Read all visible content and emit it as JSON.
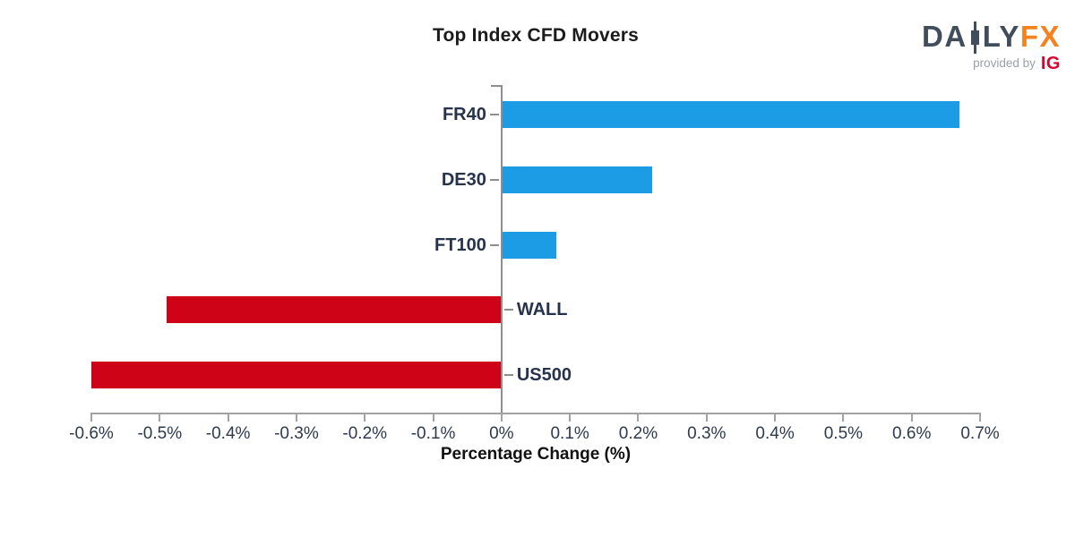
{
  "logo": {
    "part1": "DA",
    "part2": "LY",
    "part3": "FX",
    "provided_by": "provided by",
    "ig": "IG",
    "colors": {
      "wordmark": "#424d5c",
      "fx": "#f5821f",
      "provided_by": "#9aa0a8",
      "ig": "#d9032d"
    }
  },
  "chart_data": {
    "type": "bar",
    "orientation": "horizontal",
    "title": "Top Index CFD Movers",
    "xlabel": "Percentage Change (%)",
    "categories": [
      "FR40",
      "DE30",
      "FT100",
      "WALL",
      "US500"
    ],
    "values": [
      0.67,
      0.22,
      0.08,
      -0.49,
      -0.6
    ],
    "unit": "%",
    "xlim": [
      -0.6,
      0.7
    ],
    "x_ticks": [
      -0.6,
      -0.5,
      -0.4,
      -0.3,
      -0.2,
      -0.1,
      0,
      0.1,
      0.2,
      0.3,
      0.4,
      0.5,
      0.6,
      0.7
    ],
    "x_tick_labels": [
      "-0.6%",
      "-0.5%",
      "-0.4%",
      "-0.3%",
      "-0.2%",
      "-0.1%",
      "0%",
      "0.1%",
      "0.2%",
      "0.3%",
      "0.4%",
      "0.5%",
      "0.6%",
      "0.7%"
    ],
    "positive_color": "#1c9ce4",
    "negative_color": "#ce0318",
    "category_label_color": "#27334a",
    "tick_label_color": "#2e3a4d",
    "axis_color": "#a2a2a2",
    "grid": false,
    "legend": false
  }
}
